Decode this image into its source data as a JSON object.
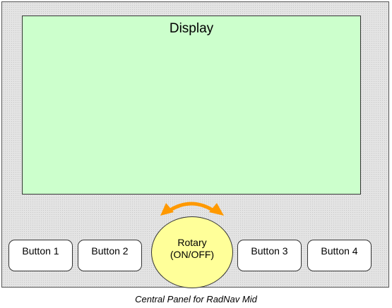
{
  "display": {
    "label": "Display"
  },
  "buttons": [
    {
      "label": "Button 1"
    },
    {
      "label": "Button 2"
    },
    {
      "label": "Button 3"
    },
    {
      "label": "Button 4"
    }
  ],
  "rotary": {
    "line1": "Rotary",
    "line2": "(ON/OFF)"
  },
  "caption": "Central Panel for RadNav Mid",
  "colors": {
    "display_bg": "#ccffcc",
    "rotary_bg": "#ffff99",
    "arrow": "#ff9900",
    "panel_bg": "#e4e4e4"
  },
  "icons": {
    "rotary_arrow": "double-headed-curved-arrow-icon"
  }
}
